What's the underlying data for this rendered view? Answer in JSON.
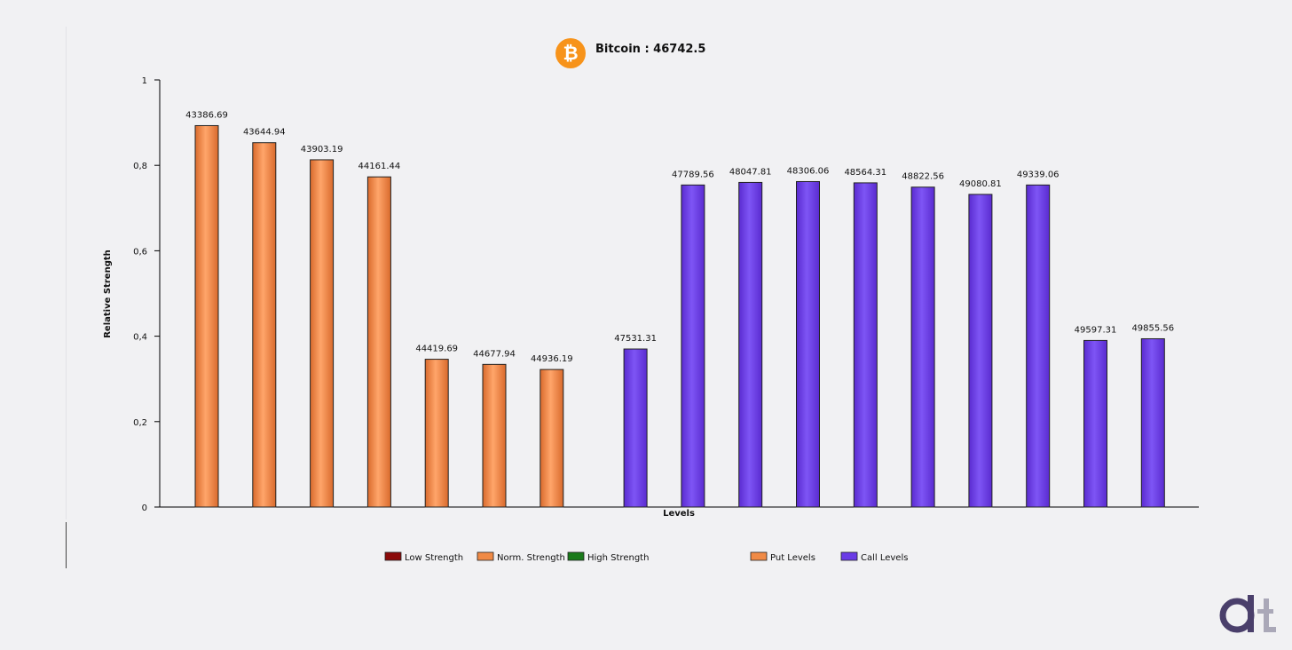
{
  "header": {
    "title": "Bitcoin : 46742.5",
    "logo_icon": "bitcoin-icon",
    "logo_color": "#f7931a"
  },
  "chart_data": {
    "type": "bar",
    "title": "Bitcoin : 46742.5",
    "xlabel": "Levels",
    "ylabel": "Relative Strength",
    "ylim": [
      0,
      1
    ],
    "yticks": [
      "0",
      "0,2",
      "0,4",
      "0,6",
      "0,8",
      "1"
    ],
    "grid": false,
    "legend_position": "bottom",
    "categories": [
      "43386.69",
      "43644.94",
      "43903.19",
      "44161.44",
      "44419.69",
      "44677.94",
      "44936.19",
      "47531.31",
      "47789.56",
      "48047.81",
      "48306.06",
      "48564.31",
      "48822.56",
      "49080.81",
      "49339.06",
      "49597.31",
      "49855.56"
    ],
    "values": [
      0.893,
      0.853,
      0.813,
      0.773,
      0.346,
      0.334,
      0.322,
      0.37,
      0.754,
      0.76,
      0.762,
      0.759,
      0.749,
      0.732,
      0.754,
      0.39,
      0.394
    ],
    "bar_types": [
      "put",
      "put",
      "put",
      "put",
      "put",
      "put",
      "put",
      "call",
      "call",
      "call",
      "call",
      "call",
      "call",
      "call",
      "call",
      "call",
      "call"
    ],
    "colors": {
      "put": "#f08a45",
      "call": "#6a3be6"
    },
    "legend": [
      {
        "label": "Low Strength",
        "color": "#8b0a0a"
      },
      {
        "label": "Norm. Strength",
        "color": "#f08a45"
      },
      {
        "label": "High Strength",
        "color": "#1a7a1a"
      },
      {
        "label": "Put Levels",
        "color": "#f08a45"
      },
      {
        "label": "Call Levels",
        "color": "#6a3be6"
      }
    ]
  },
  "watermark": {
    "icon": "dt-logo-icon",
    "color": "#4a3f6b"
  }
}
